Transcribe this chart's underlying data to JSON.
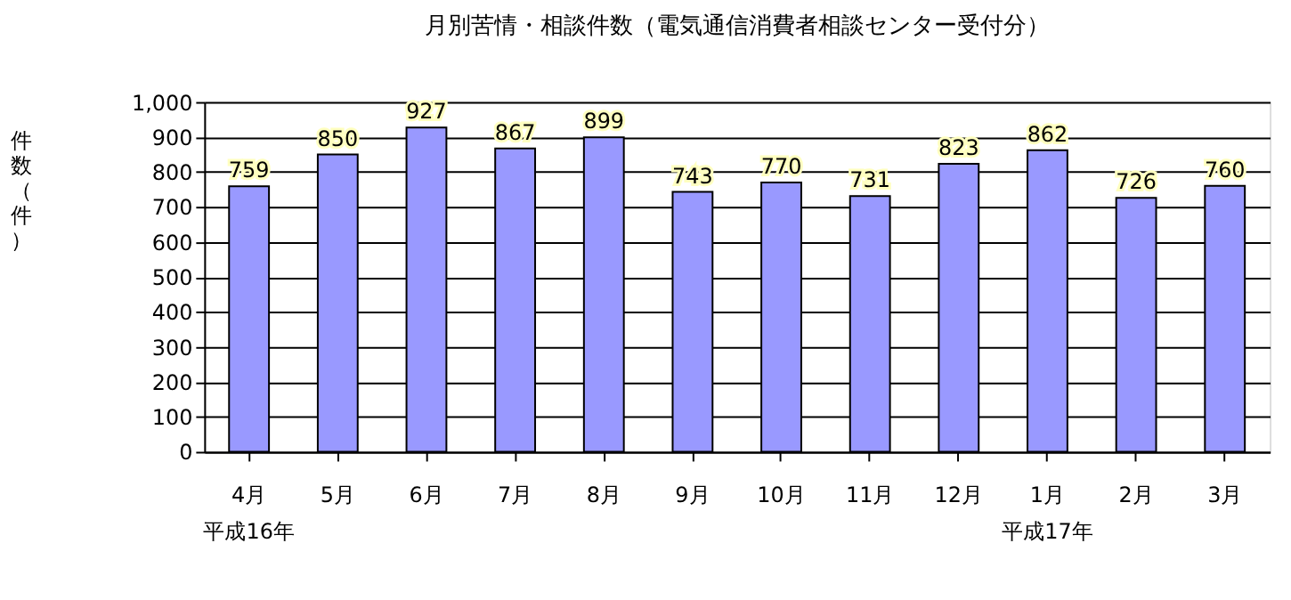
{
  "chart_data": {
    "type": "bar",
    "title": "月別苦情・相談件数（電気通信消費者相談センター受付分）",
    "ylabel": "件数（件）",
    "categories": [
      "4月",
      "5月",
      "6月",
      "7月",
      "8月",
      "9月",
      "10月",
      "11月",
      "12月",
      "1月",
      "2月",
      "3月"
    ],
    "values": [
      759,
      850,
      927,
      867,
      899,
      743,
      770,
      731,
      823,
      862,
      726,
      760
    ],
    "color": "#9999ff",
    "data_labels": true,
    "grid": "y",
    "ylim": [
      0,
      1000
    ],
    "yticks": [
      0,
      100,
      200,
      300,
      400,
      500,
      600,
      700,
      800,
      900,
      {
        "value": 1000,
        "label": "1,000"
      }
    ],
    "annotations": [
      "平成16年",
      "平成17年"
    ]
  }
}
